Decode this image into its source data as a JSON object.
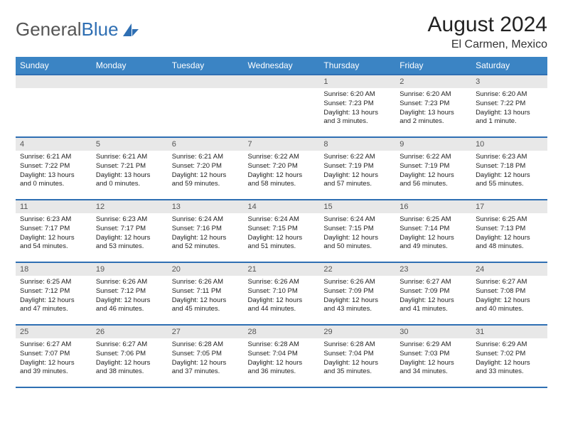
{
  "brand": {
    "part1": "General",
    "part2": "Blue"
  },
  "title": "August 2024",
  "location": "El Carmen, Mexico",
  "colors": {
    "header_bg": "#3b84c4",
    "header_border": "#2f6fb3",
    "daynum_bg": "#e8e8e8",
    "text": "#222222",
    "logo_gray": "#555555",
    "logo_blue": "#2f6fb3"
  },
  "weekdays": [
    "Sunday",
    "Monday",
    "Tuesday",
    "Wednesday",
    "Thursday",
    "Friday",
    "Saturday"
  ],
  "weeks": [
    [
      null,
      null,
      null,
      null,
      {
        "n": "1",
        "sr": "Sunrise: 6:20 AM",
        "ss": "Sunset: 7:23 PM",
        "dl": "Daylight: 13 hours and 3 minutes."
      },
      {
        "n": "2",
        "sr": "Sunrise: 6:20 AM",
        "ss": "Sunset: 7:23 PM",
        "dl": "Daylight: 13 hours and 2 minutes."
      },
      {
        "n": "3",
        "sr": "Sunrise: 6:20 AM",
        "ss": "Sunset: 7:22 PM",
        "dl": "Daylight: 13 hours and 1 minute."
      }
    ],
    [
      {
        "n": "4",
        "sr": "Sunrise: 6:21 AM",
        "ss": "Sunset: 7:22 PM",
        "dl": "Daylight: 13 hours and 0 minutes."
      },
      {
        "n": "5",
        "sr": "Sunrise: 6:21 AM",
        "ss": "Sunset: 7:21 PM",
        "dl": "Daylight: 13 hours and 0 minutes."
      },
      {
        "n": "6",
        "sr": "Sunrise: 6:21 AM",
        "ss": "Sunset: 7:20 PM",
        "dl": "Daylight: 12 hours and 59 minutes."
      },
      {
        "n": "7",
        "sr": "Sunrise: 6:22 AM",
        "ss": "Sunset: 7:20 PM",
        "dl": "Daylight: 12 hours and 58 minutes."
      },
      {
        "n": "8",
        "sr": "Sunrise: 6:22 AM",
        "ss": "Sunset: 7:19 PM",
        "dl": "Daylight: 12 hours and 57 minutes."
      },
      {
        "n": "9",
        "sr": "Sunrise: 6:22 AM",
        "ss": "Sunset: 7:19 PM",
        "dl": "Daylight: 12 hours and 56 minutes."
      },
      {
        "n": "10",
        "sr": "Sunrise: 6:23 AM",
        "ss": "Sunset: 7:18 PM",
        "dl": "Daylight: 12 hours and 55 minutes."
      }
    ],
    [
      {
        "n": "11",
        "sr": "Sunrise: 6:23 AM",
        "ss": "Sunset: 7:17 PM",
        "dl": "Daylight: 12 hours and 54 minutes."
      },
      {
        "n": "12",
        "sr": "Sunrise: 6:23 AM",
        "ss": "Sunset: 7:17 PM",
        "dl": "Daylight: 12 hours and 53 minutes."
      },
      {
        "n": "13",
        "sr": "Sunrise: 6:24 AM",
        "ss": "Sunset: 7:16 PM",
        "dl": "Daylight: 12 hours and 52 minutes."
      },
      {
        "n": "14",
        "sr": "Sunrise: 6:24 AM",
        "ss": "Sunset: 7:15 PM",
        "dl": "Daylight: 12 hours and 51 minutes."
      },
      {
        "n": "15",
        "sr": "Sunrise: 6:24 AM",
        "ss": "Sunset: 7:15 PM",
        "dl": "Daylight: 12 hours and 50 minutes."
      },
      {
        "n": "16",
        "sr": "Sunrise: 6:25 AM",
        "ss": "Sunset: 7:14 PM",
        "dl": "Daylight: 12 hours and 49 minutes."
      },
      {
        "n": "17",
        "sr": "Sunrise: 6:25 AM",
        "ss": "Sunset: 7:13 PM",
        "dl": "Daylight: 12 hours and 48 minutes."
      }
    ],
    [
      {
        "n": "18",
        "sr": "Sunrise: 6:25 AM",
        "ss": "Sunset: 7:12 PM",
        "dl": "Daylight: 12 hours and 47 minutes."
      },
      {
        "n": "19",
        "sr": "Sunrise: 6:26 AM",
        "ss": "Sunset: 7:12 PM",
        "dl": "Daylight: 12 hours and 46 minutes."
      },
      {
        "n": "20",
        "sr": "Sunrise: 6:26 AM",
        "ss": "Sunset: 7:11 PM",
        "dl": "Daylight: 12 hours and 45 minutes."
      },
      {
        "n": "21",
        "sr": "Sunrise: 6:26 AM",
        "ss": "Sunset: 7:10 PM",
        "dl": "Daylight: 12 hours and 44 minutes."
      },
      {
        "n": "22",
        "sr": "Sunrise: 6:26 AM",
        "ss": "Sunset: 7:09 PM",
        "dl": "Daylight: 12 hours and 43 minutes."
      },
      {
        "n": "23",
        "sr": "Sunrise: 6:27 AM",
        "ss": "Sunset: 7:09 PM",
        "dl": "Daylight: 12 hours and 41 minutes."
      },
      {
        "n": "24",
        "sr": "Sunrise: 6:27 AM",
        "ss": "Sunset: 7:08 PM",
        "dl": "Daylight: 12 hours and 40 minutes."
      }
    ],
    [
      {
        "n": "25",
        "sr": "Sunrise: 6:27 AM",
        "ss": "Sunset: 7:07 PM",
        "dl": "Daylight: 12 hours and 39 minutes."
      },
      {
        "n": "26",
        "sr": "Sunrise: 6:27 AM",
        "ss": "Sunset: 7:06 PM",
        "dl": "Daylight: 12 hours and 38 minutes."
      },
      {
        "n": "27",
        "sr": "Sunrise: 6:28 AM",
        "ss": "Sunset: 7:05 PM",
        "dl": "Daylight: 12 hours and 37 minutes."
      },
      {
        "n": "28",
        "sr": "Sunrise: 6:28 AM",
        "ss": "Sunset: 7:04 PM",
        "dl": "Daylight: 12 hours and 36 minutes."
      },
      {
        "n": "29",
        "sr": "Sunrise: 6:28 AM",
        "ss": "Sunset: 7:04 PM",
        "dl": "Daylight: 12 hours and 35 minutes."
      },
      {
        "n": "30",
        "sr": "Sunrise: 6:29 AM",
        "ss": "Sunset: 7:03 PM",
        "dl": "Daylight: 12 hours and 34 minutes."
      },
      {
        "n": "31",
        "sr": "Sunrise: 6:29 AM",
        "ss": "Sunset: 7:02 PM",
        "dl": "Daylight: 12 hours and 33 minutes."
      }
    ]
  ]
}
